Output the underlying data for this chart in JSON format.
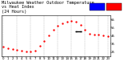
{
  "bg_color": "#ffffff",
  "plot_bg": "#ffffff",
  "border_color": "#000000",
  "grid_color": "#aaaaaa",
  "temp_color": "#ff0000",
  "heat_color": "#000000",
  "x_hours": [
    0,
    1,
    2,
    3,
    4,
    5,
    6,
    7,
    8,
    9,
    10,
    11,
    12,
    13,
    14,
    15,
    16,
    17,
    18,
    19,
    20,
    21,
    22,
    23
  ],
  "temp_values": [
    31,
    30,
    29,
    28,
    27,
    26,
    26,
    27,
    32,
    38,
    45,
    52,
    57,
    60,
    62,
    63,
    62,
    58,
    52,
    47,
    46,
    46,
    45,
    44
  ],
  "heat_values": [
    null,
    null,
    null,
    null,
    null,
    null,
    null,
    null,
    null,
    null,
    null,
    null,
    null,
    null,
    null,
    null,
    50,
    50,
    null,
    null,
    null,
    null,
    null,
    null
  ],
  "ylim": [
    20,
    70
  ],
  "ylabel_values": [
    25,
    35,
    45,
    55,
    65
  ],
  "grid_hours": [
    0,
    3,
    6,
    9,
    12,
    15,
    18,
    21,
    23
  ],
  "title_fontsize": 3.8,
  "tick_fontsize": 2.8,
  "marker_size": 1.4,
  "heat_marker_size": 2.0,
  "legend_blue": "#0000ff",
  "legend_red": "#ff0000"
}
